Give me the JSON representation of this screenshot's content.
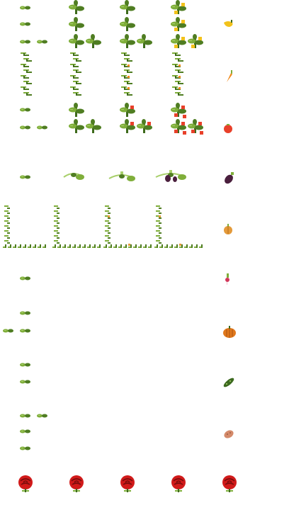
{
  "sheet": {
    "background": "#ffffff",
    "palette": {
      "leaf": "#7fae3a",
      "leaf_dark": "#4f7d22",
      "leaf_light": "#a8cf6a",
      "stem": "#3e6b1c",
      "yellow": "#f2c21b",
      "orange": "#f08a1c",
      "tomato": "#e8402a",
      "eggplant": "#4a1f3d",
      "onion": "#e49a3a",
      "radish": "#d2365a",
      "pumpkin": "#e0781c",
      "zucchini": "#3c6a1f",
      "potato": "#d48a6a",
      "rose": "#d11a1a",
      "rose_dark": "#7a0c0c"
    },
    "rows": [
      {
        "crop": "bell-pepper",
        "produce_icon": "yellow-pepper-icon",
        "stages": [
          "seedling",
          "sprout",
          "young-plant",
          "mature-plant",
          "fruiting-plant"
        ]
      },
      {
        "crop": "carrot",
        "produce_icon": "carrot-icon",
        "stages": [
          "seedling",
          "sprout",
          "young-plant",
          "mature-plant"
        ]
      },
      {
        "crop": "tomato",
        "produce_icon": "tomato-icon",
        "stages": [
          "seedling",
          "sprout",
          "young-plant",
          "mature-plant",
          "fruiting-plant"
        ]
      },
      {
        "crop": "eggplant",
        "produce_icon": "eggplant-icon",
        "stages": [
          "seedling",
          "vine",
          "flowering-vine",
          "fruiting-vine"
        ]
      },
      {
        "crop": "onion",
        "produce_icon": "onion-icon",
        "stages": [
          "vine-sprout",
          "vine-young",
          "vine-mature",
          "vine-fruiting"
        ]
      },
      {
        "crop": "radish",
        "produce_icon": "radish-icon",
        "stages": [
          "seedling"
        ]
      },
      {
        "crop": "pumpkin",
        "produce_icon": "pumpkin-icon",
        "stages": [
          "seedling",
          "sprout"
        ]
      },
      {
        "crop": "zucchini",
        "produce_icon": "zucchini-icon",
        "stages": [
          "seedling",
          "sprout"
        ]
      },
      {
        "crop": "potato",
        "produce_icon": "potato-icon",
        "stages": [
          "seedling",
          "sprout",
          "young-plant"
        ]
      },
      {
        "crop": "rose",
        "produce_icon": "rose-icon",
        "stages": [
          "rose-bloom",
          "rose-bloom",
          "rose-bloom",
          "rose-bloom",
          "rose-bloom"
        ]
      }
    ]
  }
}
